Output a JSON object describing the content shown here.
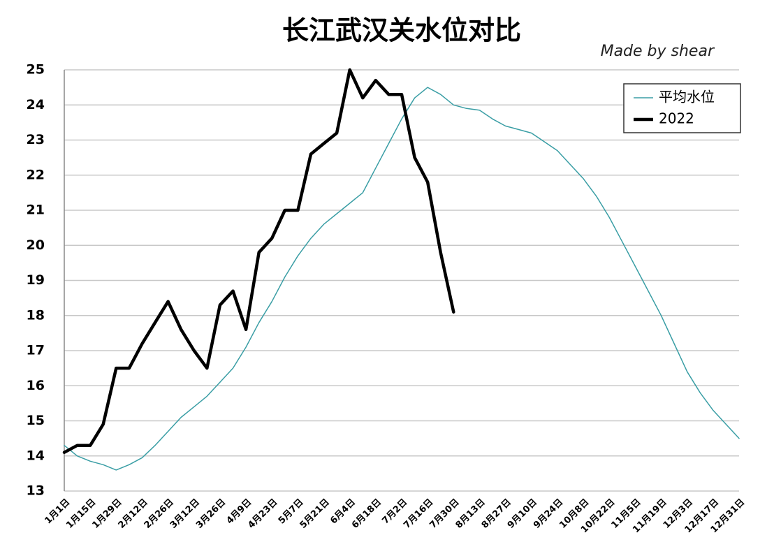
{
  "chart_data": {
    "type": "line",
    "title": "长江武汉关水位对比",
    "annotation": "Made by shear",
    "categories": [
      "1月1日",
      null,
      "1月15日",
      null,
      "1月29日",
      null,
      "2月12日",
      null,
      "2月26日",
      null,
      "3月12日",
      null,
      "3月26日",
      null,
      "4月9日",
      null,
      "4月23日",
      null,
      "5月7日",
      null,
      "5月21日",
      null,
      "6月4日",
      null,
      "6月18日",
      null,
      "7月2日",
      null,
      "7月16日",
      null,
      "7月30日",
      null,
      "8月13日",
      null,
      "8月27日",
      null,
      "9月10日",
      null,
      "9月24日",
      null,
      "10月8日",
      null,
      "10月22日",
      null,
      "11月5日",
      null,
      "11月19日",
      null,
      "12月3日",
      null,
      "12月17日",
      null,
      "12月31日"
    ],
    "series": [
      {
        "name": "平均水位",
        "color": "#3a9ea5",
        "width": 1.5,
        "values": [
          14.3,
          14.0,
          13.85,
          13.75,
          13.6,
          13.75,
          13.95,
          14.3,
          14.7,
          15.1,
          15.4,
          15.7,
          16.1,
          16.5,
          17.1,
          17.8,
          18.4,
          19.1,
          19.7,
          20.2,
          20.6,
          20.9,
          21.2,
          21.5,
          22.2,
          22.9,
          23.6,
          24.2,
          24.5,
          24.3,
          24.0,
          23.9,
          23.85,
          23.6,
          23.4,
          23.3,
          23.2,
          22.95,
          22.7,
          22.3,
          21.9,
          21.4,
          20.8,
          20.1,
          19.4,
          18.7,
          18.0,
          17.2,
          16.4,
          15.8,
          15.3,
          14.9,
          14.5
        ]
      },
      {
        "name": "2022",
        "color": "#000000",
        "width": 4.5,
        "values": [
          14.1,
          14.3,
          14.3,
          14.9,
          16.5,
          16.5,
          17.2,
          17.8,
          18.4,
          17.6,
          17.0,
          16.5,
          18.3,
          18.7,
          17.6,
          19.8,
          20.2,
          21.0,
          21.0,
          22.6,
          22.9,
          23.2,
          25.0,
          24.2,
          24.7,
          24.3,
          24.3,
          22.5,
          21.8,
          19.8,
          18.1,
          null,
          null,
          null,
          null,
          null,
          null,
          null,
          null,
          null,
          null,
          null,
          null,
          null,
          null,
          null,
          null,
          null,
          null,
          null,
          null,
          null,
          null
        ]
      }
    ],
    "ylim": [
      13,
      25
    ],
    "yticks": [
      13,
      14,
      15,
      16,
      17,
      18,
      19,
      20,
      21,
      22,
      23,
      24,
      25
    ],
    "grid": true,
    "legend": "upper right"
  }
}
